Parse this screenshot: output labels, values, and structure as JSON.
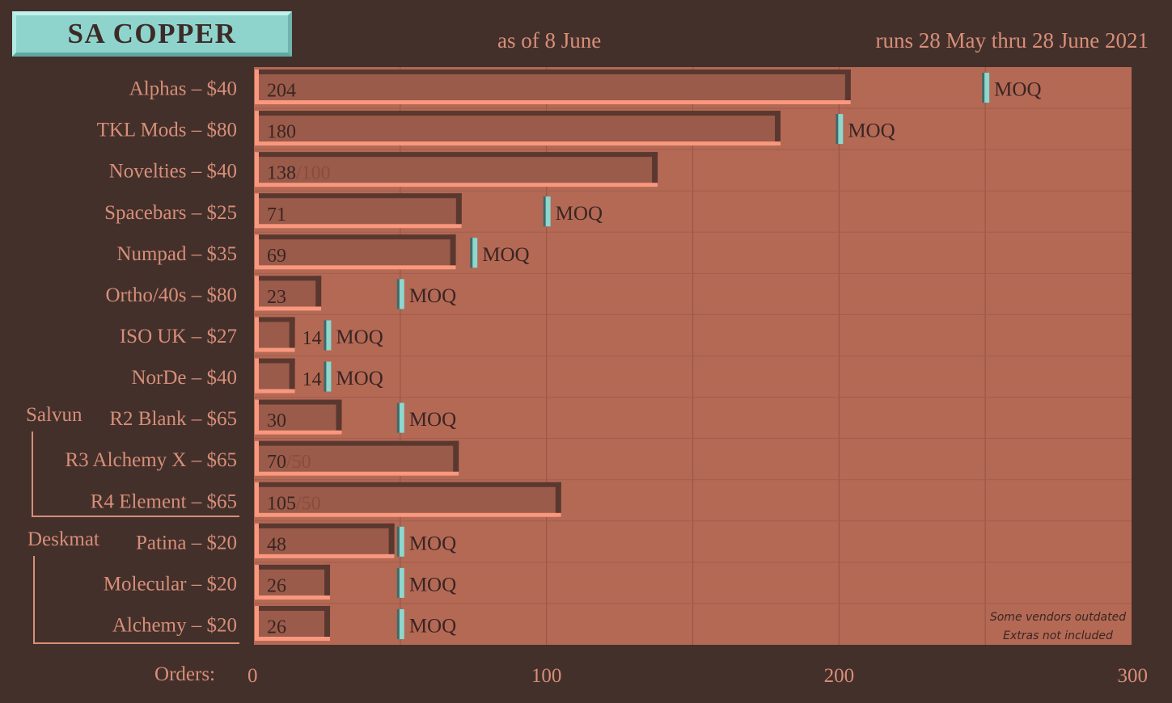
{
  "header": {
    "badge_title": "SA COPPER",
    "as_of": "as of 8 June",
    "runs": "runs 28 May thru 28 June 2021"
  },
  "groups": {
    "salvun": "Salvun",
    "deskmat": "Deskmat"
  },
  "colors": {
    "background": "#43302b",
    "plot": "#b46955",
    "bar": "#9a5b4b",
    "bar_highlight": "#f9987e",
    "bar_shadow": "#5a382f",
    "moq_marker": "#8fd6ce",
    "text": "#d88e78"
  },
  "chart_data": {
    "type": "bar",
    "orientation": "horizontal",
    "categories": [
      "Alphas – $40",
      "TKL Mods – $80",
      "Novelties – $40",
      "Spacebars – $25",
      "Numpad – $35",
      "Ortho/40s – $80",
      "ISO UK – $27",
      "NorDe – $40",
      "R2 Blank – $65",
      "R3 Alchemy X – $65",
      "R4 Element – $65",
      "Patina – $20",
      "Molecular – $20",
      "Alchemy – $20"
    ],
    "values": [
      204,
      180,
      138,
      71,
      69,
      23,
      14,
      14,
      30,
      70,
      105,
      48,
      26,
      26
    ],
    "value_labels": [
      "204",
      "180",
      "138",
      "71",
      "69",
      "23",
      "14",
      "14",
      "30",
      "70",
      "105",
      "48",
      "26",
      "26"
    ],
    "moq": [
      250,
      200,
      null,
      100,
      75,
      50,
      25,
      25,
      50,
      null,
      null,
      50,
      50,
      50
    ],
    "moq_label": "MOQ",
    "moq_met_labels": [
      null,
      null,
      "/100",
      null,
      null,
      null,
      null,
      null,
      null,
      "/50",
      "/50",
      null,
      null,
      null
    ],
    "xlabel": "Orders:",
    "xlim": [
      0,
      300
    ],
    "xticks": [
      0,
      100,
      200,
      300
    ],
    "grid": true,
    "notes": [
      "Some vendors outdated",
      "Extras not included"
    ]
  }
}
